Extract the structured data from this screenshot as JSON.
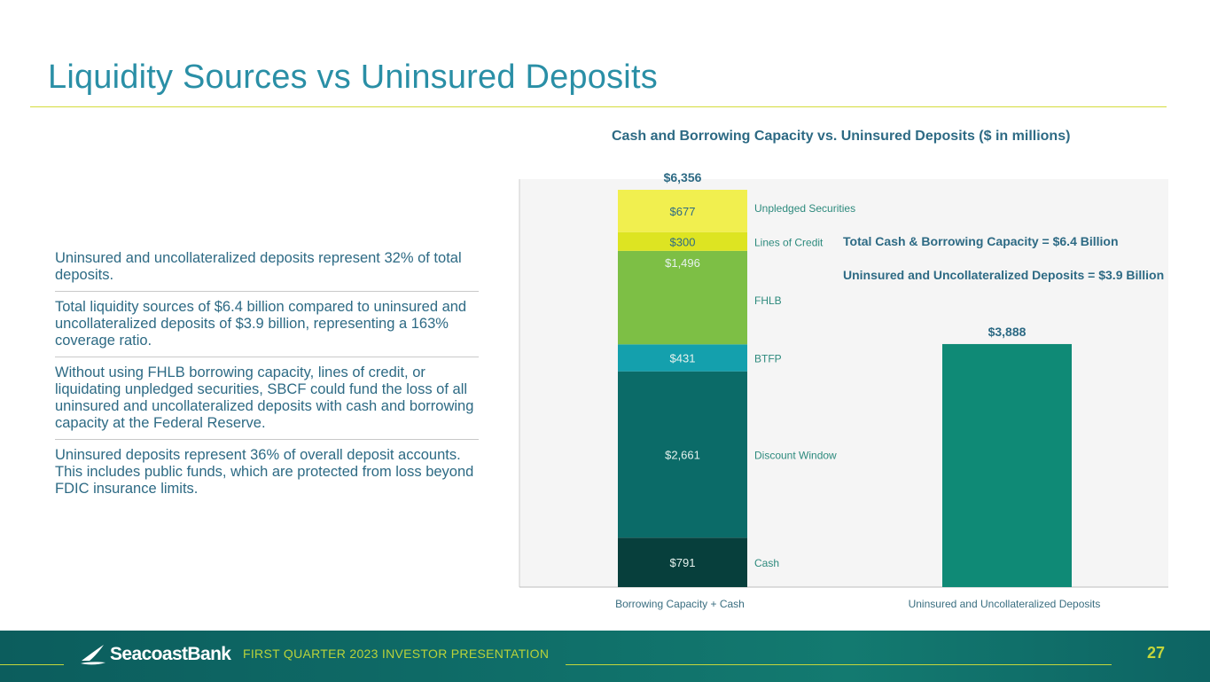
{
  "page": {
    "title": "Liquidity Sources vs Uninsured Deposits",
    "bullets": [
      "Uninsured and uncollateralized deposits represent 32% of total deposits.",
      "Total liquidity sources of $6.4 billion compared to uninsured and uncollateralized deposits of $3.9 billion, representing a 163% coverage ratio.",
      "Without using FHLB borrowing capacity, lines of credit, or liquidating unpledged securities, SBCF could fund the loss of all uninsured and uncollateralized deposits with cash and borrowing capacity at the Federal Reserve.",
      "Uninsured deposits represent 36% of overall deposit accounts. This includes public funds, which are protected from loss beyond FDIC insurance limits."
    ],
    "annotations": {
      "total_capacity": "Total Cash & Borrowing Capacity = $6.4 Billion",
      "uninsured": "Uninsured and Uncollateralized Deposits = $3.9 Billion"
    }
  },
  "footer": {
    "brand": "SeacoastBank",
    "tagline": "FIRST QUARTER 2023 INVESTOR PRESENTATION",
    "page_number": "27"
  },
  "colors": {
    "cash": "#073f3c",
    "discount_window": "#0b6b68",
    "btfp": "#14a0ad",
    "fhlb": "#7dbf45",
    "lines_of_credit": "#dde422",
    "unpledged": "#f1ef4f",
    "uninsured_bar": "#0f8a76",
    "series_label": "#2d8a7d",
    "value_label_dark": "#2d6a84"
  },
  "chart_data": {
    "type": "bar",
    "stacked": true,
    "title": "Cash and Borrowing Capacity vs. Uninsured Deposits ($ in millions)",
    "categories": [
      "Borrowing Capacity + Cash",
      "Uninsured and Uncollateralized Deposits"
    ],
    "ylim": [
      0,
      6500
    ],
    "grid": false,
    "series": [
      {
        "name": "Cash",
        "values": [
          791,
          0
        ],
        "labels": [
          "$791",
          ""
        ]
      },
      {
        "name": "Discount Window",
        "values": [
          2661,
          0
        ],
        "labels": [
          "$2,661",
          ""
        ]
      },
      {
        "name": "BTFP",
        "values": [
          431,
          0
        ],
        "labels": [
          "$431",
          ""
        ]
      },
      {
        "name": "FHLB",
        "values": [
          1496,
          0
        ],
        "labels": [
          "$1,496",
          ""
        ]
      },
      {
        "name": "Lines of Credit",
        "values": [
          300,
          0
        ],
        "labels": [
          "$300",
          ""
        ]
      },
      {
        "name": "Unpledged Securities",
        "values": [
          677,
          0
        ],
        "labels": [
          "$677",
          ""
        ]
      },
      {
        "name": "Uninsured and Uncollateralized Deposits",
        "values": [
          0,
          3888
        ],
        "labels": [
          "",
          ""
        ]
      }
    ],
    "totals": [
      6356,
      3888
    ],
    "total_labels": [
      "$6,356",
      "$3,888"
    ]
  }
}
